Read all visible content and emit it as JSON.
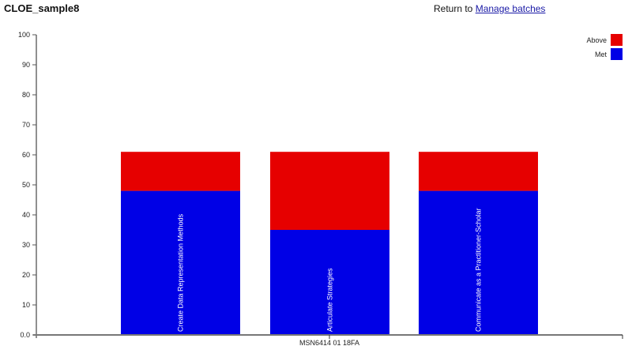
{
  "header": {
    "title": "CLOE_sample8",
    "return_prefix": "Return to",
    "return_link": "Manage batches"
  },
  "colors": {
    "above": "#e60000",
    "met": "#0000e6",
    "axis": "#666666"
  },
  "legend": [
    {
      "label": "Above",
      "color": "#e60000"
    },
    {
      "label": "Met",
      "color": "#0000e6"
    }
  ],
  "chart_data": {
    "type": "bar",
    "stacked": true,
    "title": "",
    "xlabel": "",
    "ylabel": "",
    "ylim": [
      0,
      100
    ],
    "yticks": [
      "0.0",
      "10",
      "20",
      "30",
      "40",
      "50",
      "60",
      "70",
      "80",
      "90",
      "100"
    ],
    "x_group_label": "MSN6414_01_18FA",
    "categories": [
      "Create Data Representation Methods",
      "Articulate Strategies",
      "Communicate as a Practitioner-Scholar"
    ],
    "series": [
      {
        "name": "Met",
        "color": "#0000e6",
        "values": [
          48,
          35,
          48
        ]
      },
      {
        "name": "Above",
        "color": "#e60000",
        "values": [
          13,
          26,
          13
        ]
      }
    ],
    "grid": false,
    "legend_position": "top-right"
  }
}
